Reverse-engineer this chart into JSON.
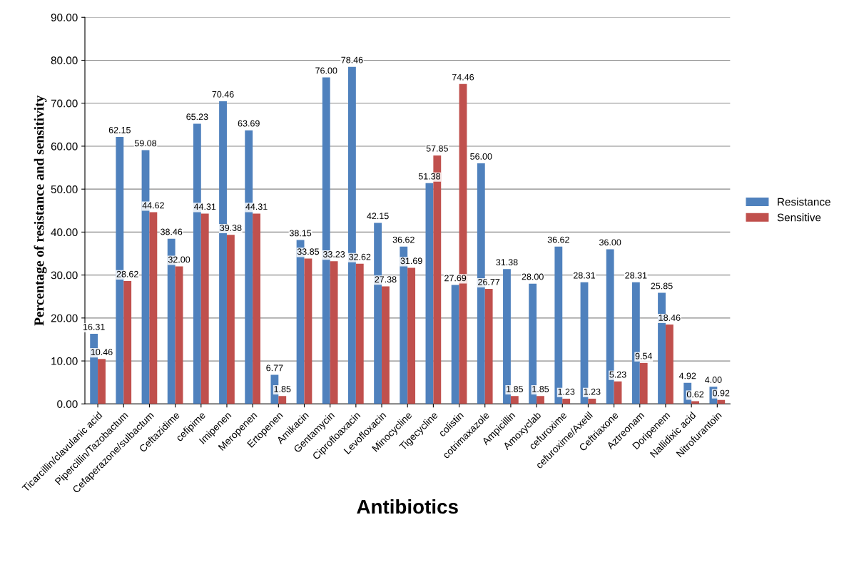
{
  "chart_data": {
    "type": "bar",
    "xlabel": "Antibiotics",
    "ylabel": "Percentage of resistance and sensitivity",
    "categories": [
      "Ticarcillin/clavulanic acid",
      "Pipercillin/Tazobactum",
      "Cefaperazone/sulbactum",
      "Ceftazidime",
      "cefipime",
      "Imipenen",
      "Meropenen",
      "Ertopenen",
      "Amikacin",
      "Gentamycin",
      "Ciprofloaxacin",
      "Levofloxacin",
      "Minocycline",
      "Tigecycline",
      "colistin",
      "cotrimaxazole",
      "Ampicillin",
      "Amoxyclab",
      "cefuroxime",
      "cefuroxime/Axetil",
      "Ceftriaxone",
      "Aztreonam",
      "Doripenem",
      "Nallidixic acid",
      "Nitrofurantoin"
    ],
    "series": [
      {
        "name": "Resistance",
        "color": "#4f81bd",
        "values": [
          16.31,
          62.15,
          59.08,
          38.46,
          65.23,
          70.46,
          63.69,
          6.77,
          38.15,
          76.0,
          78.46,
          42.15,
          36.62,
          51.38,
          27.69,
          56.0,
          31.38,
          28.0,
          36.62,
          28.31,
          36.0,
          28.31,
          25.85,
          4.92,
          4.0
        ],
        "value_labels": [
          "16.31",
          "62.15",
          "59.08",
          "38.46",
          "65.23",
          "70.46",
          "63.69",
          "6.77",
          "38.15",
          "76.00",
          "78.46",
          "42.15",
          "36.62",
          "51.38",
          "27.69",
          "56.00",
          "31.38",
          "28.00",
          "36.62",
          "28.31",
          "36.00",
          "28.31",
          "25.85",
          "4.92",
          "4.00"
        ]
      },
      {
        "name": "Sensitive",
        "color": "#c0504d",
        "values": [
          10.46,
          28.62,
          44.62,
          32.0,
          44.31,
          39.38,
          44.31,
          1.85,
          33.85,
          33.23,
          32.62,
          27.38,
          31.69,
          57.85,
          74.46,
          26.77,
          1.85,
          1.85,
          1.23,
          1.23,
          5.23,
          9.54,
          18.46,
          0.62,
          0.92
        ],
        "value_labels": [
          "10.46",
          "28.62",
          "44.62",
          "32.00",
          "44.31",
          "39.38",
          "44.31",
          "1.85",
          "33.85",
          "33.23",
          "32.62",
          "27.38",
          "31.69",
          "57.85",
          "74.46",
          "26.77",
          "1.85",
          "1.85",
          "1.23",
          "1.23",
          "5.23",
          "9.54",
          "18.46",
          "0.62",
          "0.92"
        ]
      }
    ],
    "ylim": [
      0,
      90
    ],
    "yticks": [
      {
        "value": 0,
        "label": "0.00"
      },
      {
        "value": 10,
        "label": "10.00"
      },
      {
        "value": 20,
        "label": "20.00"
      },
      {
        "value": 30,
        "label": "30.00"
      },
      {
        "value": 40,
        "label": "40.00"
      },
      {
        "value": 50,
        "label": "50.00"
      },
      {
        "value": 60,
        "label": "60.00"
      },
      {
        "value": 70,
        "label": "70.00"
      },
      {
        "value": 80,
        "label": "80.00"
      },
      {
        "value": 90,
        "label": "90.00"
      }
    ],
    "grid": "y",
    "legend": "right"
  }
}
